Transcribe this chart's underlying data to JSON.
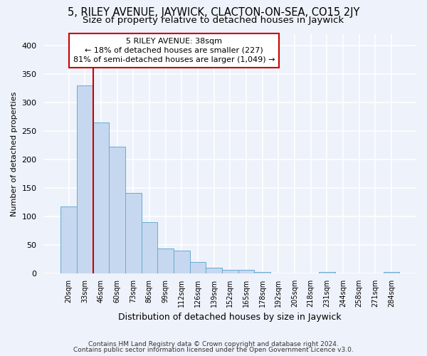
{
  "title1": "5, RILEY AVENUE, JAYWICK, CLACTON-ON-SEA, CO15 2JY",
  "title2": "Size of property relative to detached houses in Jaywick",
  "xlabel": "Distribution of detached houses by size in Jaywick",
  "ylabel": "Number of detached properties",
  "categories": [
    "20sqm",
    "33sqm",
    "46sqm",
    "60sqm",
    "73sqm",
    "86sqm",
    "99sqm",
    "112sqm",
    "126sqm",
    "139sqm",
    "152sqm",
    "165sqm",
    "178sqm",
    "192sqm",
    "205sqm",
    "218sqm",
    "231sqm",
    "244sqm",
    "258sqm",
    "271sqm",
    "284sqm"
  ],
  "values": [
    117,
    330,
    265,
    222,
    141,
    90,
    44,
    40,
    20,
    10,
    7,
    7,
    3,
    0,
    0,
    0,
    3,
    0,
    0,
    0,
    3
  ],
  "bar_color": "#c5d8f0",
  "bar_edge_color": "#6aaad4",
  "vline_color": "#cc0000",
  "vline_x": 1.5,
  "annotation_lines": [
    "5 RILEY AVENUE: 38sqm",
    "← 18% of detached houses are smaller (227)",
    "81% of semi-detached houses are larger (1,049) →"
  ],
  "annotation_box_color": "#ffffff",
  "annotation_box_edge": "#cc0000",
  "footer1": "Contains HM Land Registry data © Crown copyright and database right 2024.",
  "footer2": "Contains public sector information licensed under the Open Government Licence v3.0.",
  "ylim": [
    0,
    420
  ],
  "yticks": [
    0,
    50,
    100,
    150,
    200,
    250,
    300,
    350,
    400
  ],
  "background_color": "#eef2fa",
  "grid_color": "#ffffff",
  "title_fontsize": 10.5,
  "subtitle_fontsize": 9.5,
  "footer_fontsize": 6.5,
  "ylabel_fontsize": 8,
  "xlabel_fontsize": 9
}
